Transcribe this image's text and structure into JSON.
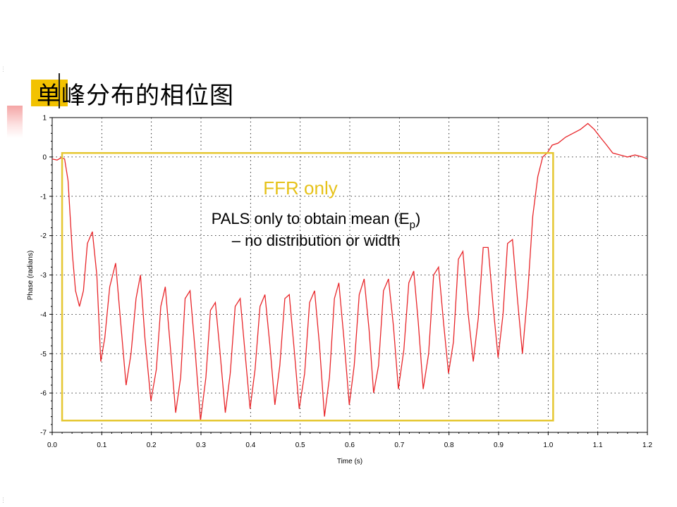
{
  "slide": {
    "title": "单峰分布的相位图"
  },
  "colors": {
    "accent": "#f2c200",
    "trace": "#e8262a",
    "box": "#e6c732",
    "ffr_text": "#e6c21a",
    "grid": "#000000"
  },
  "annotations": {
    "ffr_label": "FFR only",
    "pals_line1_main": "PALS only to obtain mean (E",
    "pals_line1_sub": "p",
    "pals_line1_end": ")",
    "pals_line2": "– no distribution or width"
  },
  "chart_data": {
    "type": "line",
    "xlabel": "Time (s)",
    "ylabel": "Phase (radians)",
    "xlim": [
      0.0,
      1.2
    ],
    "ylim": [
      -7,
      1
    ],
    "xticks": [
      "0.0",
      "0.1",
      "0.2",
      "0.3",
      "0.4",
      "0.5",
      "0.6",
      "0.7",
      "0.8",
      "0.9",
      "1.0",
      "1.1",
      "1.2"
    ],
    "yticks": [
      "1",
      "0",
      "-1",
      "-2",
      "-3",
      "-4",
      "-5",
      "-6",
      "-7"
    ],
    "grid": true,
    "highlight_box": {
      "x": [
        0.02,
        1.01
      ],
      "y": [
        -6.7,
        0.1
      ]
    },
    "series": [
      {
        "x": [
          0.0,
          0.01,
          0.018,
          0.025,
          0.032,
          0.041,
          0.047,
          0.055,
          0.063,
          0.071,
          0.081,
          0.09,
          0.098,
          0.106,
          0.116,
          0.128,
          0.138,
          0.149,
          0.159,
          0.169,
          0.178,
          0.187,
          0.199,
          0.21,
          0.219,
          0.228,
          0.238,
          0.249,
          0.259,
          0.268,
          0.278,
          0.288,
          0.299,
          0.31,
          0.319,
          0.329,
          0.338,
          0.349,
          0.359,
          0.369,
          0.379,
          0.389,
          0.399,
          0.409,
          0.419,
          0.429,
          0.439,
          0.449,
          0.459,
          0.469,
          0.478,
          0.488,
          0.498,
          0.509,
          0.519,
          0.529,
          0.539,
          0.549,
          0.559,
          0.569,
          0.578,
          0.588,
          0.599,
          0.609,
          0.619,
          0.629,
          0.639,
          0.648,
          0.658,
          0.668,
          0.678,
          0.688,
          0.698,
          0.709,
          0.719,
          0.729,
          0.738,
          0.748,
          0.759,
          0.769,
          0.779,
          0.789,
          0.799,
          0.809,
          0.819,
          0.828,
          0.838,
          0.849,
          0.859,
          0.869,
          0.879,
          0.889,
          0.899,
          0.909,
          0.918,
          0.928,
          0.938,
          0.948,
          0.959,
          0.969,
          0.979,
          0.989,
          0.998,
          1.008,
          1.02,
          1.035,
          1.05,
          1.065,
          1.08,
          1.093,
          1.105,
          1.118,
          1.13,
          1.145,
          1.16,
          1.175,
          1.19,
          1.2
        ],
        "y": [
          -0.05,
          -0.08,
          -0.02,
          -0.05,
          -0.6,
          -2.5,
          -3.4,
          -3.8,
          -3.4,
          -2.2,
          -1.9,
          -3.0,
          -5.2,
          -4.6,
          -3.3,
          -2.7,
          -4.2,
          -5.8,
          -5.0,
          -3.6,
          -3.0,
          -4.6,
          -6.2,
          -5.4,
          -3.8,
          -3.3,
          -4.8,
          -6.5,
          -5.6,
          -3.6,
          -3.4,
          -4.9,
          -6.7,
          -5.6,
          -3.9,
          -3.7,
          -4.9,
          -6.5,
          -5.5,
          -3.8,
          -3.6,
          -5.0,
          -6.4,
          -5.4,
          -3.8,
          -3.5,
          -4.8,
          -6.3,
          -5.3,
          -3.6,
          -3.5,
          -4.9,
          -6.4,
          -5.5,
          -3.7,
          -3.4,
          -4.8,
          -6.6,
          -5.6,
          -3.6,
          -3.2,
          -4.6,
          -6.3,
          -5.3,
          -3.5,
          -3.1,
          -4.4,
          -6.0,
          -5.3,
          -3.4,
          -3.1,
          -4.3,
          -5.9,
          -4.9,
          -3.2,
          -2.9,
          -4.2,
          -5.9,
          -5.0,
          -3.0,
          -2.8,
          -4.2,
          -5.5,
          -4.7,
          -2.6,
          -2.4,
          -3.9,
          -5.2,
          -4.1,
          -2.3,
          -2.3,
          -3.8,
          -5.1,
          -4.0,
          -2.2,
          -2.1,
          -3.6,
          -5.0,
          -3.4,
          -1.5,
          -0.5,
          0.0,
          0.1,
          0.3,
          0.35,
          0.5,
          0.6,
          0.7,
          0.85,
          0.7,
          0.5,
          0.3,
          0.1,
          0.05,
          0.0,
          0.05,
          0.0,
          -0.05
        ]
      }
    ]
  }
}
